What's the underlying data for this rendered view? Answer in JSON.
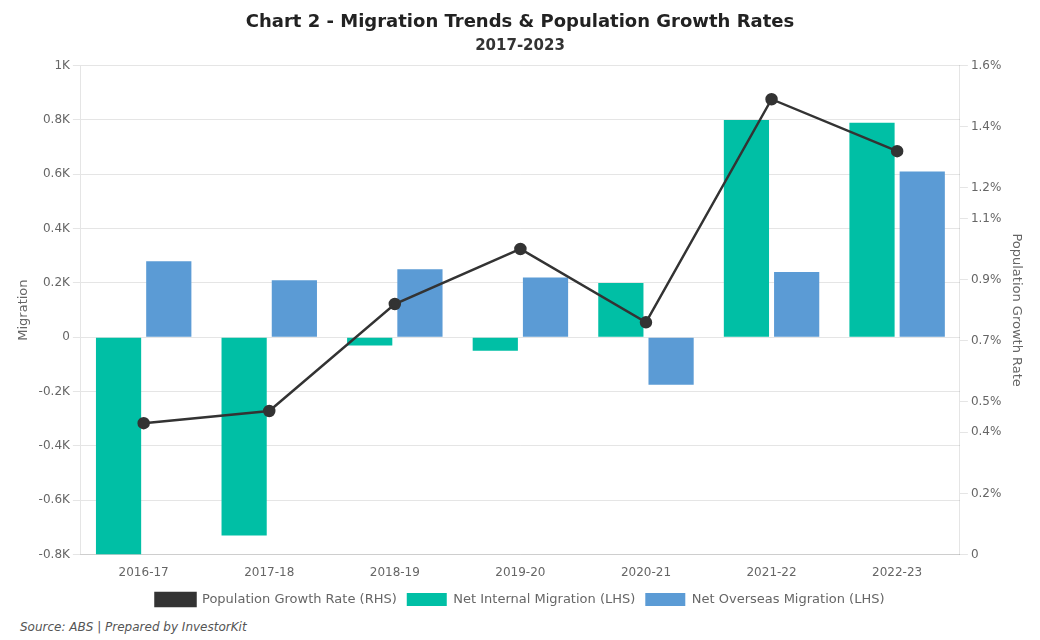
{
  "chart_data": {
    "type": "bar",
    "title": "Chart 2 - Migration Trends & Population Growth Rates",
    "subtitle": "2017-2023",
    "source": "Source: ABS | Prepared by InvestorKit",
    "categories": [
      "2016-17",
      "2017-18",
      "2018-19",
      "2019-20",
      "2020-21",
      "2021-22",
      "2022-23"
    ],
    "series": [
      {
        "name": "Net Internal Migration (LHS)",
        "color": "#00BFA5",
        "values": [
          -800,
          -730,
          -30,
          -50,
          200,
          800,
          790
        ]
      },
      {
        "name": "Net Overseas Migration (LHS)",
        "color": "#5B9BD5",
        "values": [
          280,
          210,
          250,
          220,
          -175,
          240,
          610
        ]
      },
      {
        "name": "Population Growth Rate (RHS)",
        "color": "#333333",
        "type": "line",
        "marker": "circle",
        "axis": "y2",
        "values": [
          0.43,
          0.47,
          0.82,
          1.0,
          0.76,
          1.49,
          1.32
        ]
      }
    ],
    "ylabel": "Migration",
    "y2label": "Population Growth Rate",
    "ylim": [
      -800,
      1000
    ],
    "yticks": [
      {
        "value": -800,
        "label": "-0.8K"
      },
      {
        "value": -600,
        "label": "-0.6K"
      },
      {
        "value": -400,
        "label": "-0.4K"
      },
      {
        "value": -200,
        "label": "-0.2K"
      },
      0,
      {
        "value": 200,
        "label": "0.2K"
      },
      {
        "value": 400,
        "label": "0.4K"
      },
      {
        "value": 600,
        "label": "0.6K"
      },
      {
        "value": 800,
        "label": "0.8K"
      },
      {
        "value": 1000,
        "label": "1K"
      }
    ],
    "y2lim": [
      0,
      1.6
    ],
    "y2ticks": [
      0,
      {
        "value": 0.2,
        "label": "0.2%"
      },
      {
        "value": 0.4,
        "label": "0.4%"
      },
      {
        "value": 0.5,
        "label": "0.5%"
      },
      {
        "value": 0.7,
        "label": "0.7%"
      },
      {
        "value": 0.9,
        "label": "0.9%"
      },
      {
        "value": 1.1,
        "label": "1.1%"
      },
      {
        "value": 1.2,
        "label": "1.2%"
      },
      {
        "value": 1.4,
        "label": "1.4%"
      },
      {
        "value": 1.6,
        "label": "1.6%"
      }
    ],
    "grid": true,
    "legend": "bottom"
  }
}
